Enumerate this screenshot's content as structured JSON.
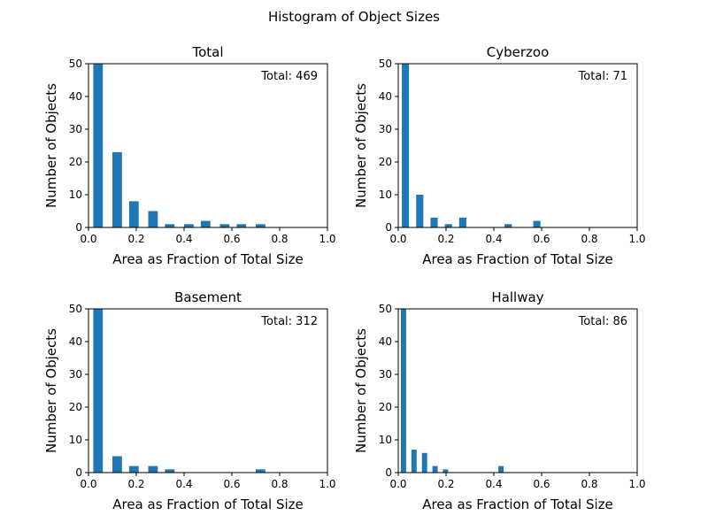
{
  "figure": {
    "suptitle": "Histogram of Object Sizes"
  },
  "chart_data": [
    {
      "type": "bar",
      "title": "Total",
      "xlabel": "Area as Fraction of Total Size",
      "ylabel": "Number of Objects",
      "annotation": "Total: 469",
      "xlim": [
        0,
        1.0
      ],
      "ylim": [
        0,
        50
      ],
      "xticks": [
        "0.0",
        "0.2",
        "0.4",
        "0.6",
        "0.8",
        "1.0"
      ],
      "yticks": [
        "0",
        "10",
        "20",
        "30",
        "40",
        "50"
      ],
      "bar_width": 0.04,
      "bars": [
        {
          "x": 0.04,
          "value": 50
        },
        {
          "x": 0.12,
          "value": 23
        },
        {
          "x": 0.19,
          "value": 8
        },
        {
          "x": 0.27,
          "value": 5
        },
        {
          "x": 0.34,
          "value": 1
        },
        {
          "x": 0.42,
          "value": 1
        },
        {
          "x": 0.49,
          "value": 2
        },
        {
          "x": 0.57,
          "value": 1
        },
        {
          "x": 0.64,
          "value": 1
        },
        {
          "x": 0.72,
          "value": 1
        }
      ],
      "color": "#1f77b4"
    },
    {
      "type": "bar",
      "title": "Cyberzoo",
      "xlabel": "Area as Fraction of Total Size",
      "ylabel": "Number of Objects",
      "annotation": "Total: 71",
      "xlim": [
        0,
        1.0
      ],
      "ylim": [
        0,
        50
      ],
      "xticks": [
        "0.0",
        "0.2",
        "0.4",
        "0.6",
        "0.8",
        "1.0"
      ],
      "yticks": [
        "0",
        "10",
        "20",
        "30",
        "40",
        "50"
      ],
      "bar_width": 0.03,
      "bars": [
        {
          "x": 0.03,
          "value": 50
        },
        {
          "x": 0.09,
          "value": 10
        },
        {
          "x": 0.15,
          "value": 3
        },
        {
          "x": 0.21,
          "value": 1
        },
        {
          "x": 0.27,
          "value": 3
        },
        {
          "x": 0.46,
          "value": 1
        },
        {
          "x": 0.58,
          "value": 2
        }
      ],
      "color": "#1f77b4"
    },
    {
      "type": "bar",
      "title": "Basement",
      "xlabel": "Area as Fraction of Total Size",
      "ylabel": "Number of Objects",
      "annotation": "Total: 312",
      "xlim": [
        0,
        1.0
      ],
      "ylim": [
        0,
        50
      ],
      "xticks": [
        "0.0",
        "0.2",
        "0.4",
        "0.6",
        "0.8",
        "1.0"
      ],
      "yticks": [
        "0",
        "10",
        "20",
        "30",
        "40",
        "50"
      ],
      "bar_width": 0.04,
      "bars": [
        {
          "x": 0.04,
          "value": 50
        },
        {
          "x": 0.12,
          "value": 5
        },
        {
          "x": 0.19,
          "value": 2
        },
        {
          "x": 0.27,
          "value": 2
        },
        {
          "x": 0.34,
          "value": 1
        },
        {
          "x": 0.72,
          "value": 1
        }
      ],
      "color": "#1f77b4"
    },
    {
      "type": "bar",
      "title": "Hallway",
      "xlabel": "Area as Fraction of Total Size",
      "ylabel": "Number of Objects",
      "annotation": "Total: 86",
      "xlim": [
        0,
        1.0
      ],
      "ylim": [
        0,
        50
      ],
      "xticks": [
        "0.0",
        "0.2",
        "0.4",
        "0.6",
        "0.8",
        "1.0"
      ],
      "yticks": [
        "0",
        "10",
        "20",
        "30",
        "40",
        "50"
      ],
      "bar_width": 0.022,
      "bars": [
        {
          "x": 0.022,
          "value": 50
        },
        {
          "x": 0.066,
          "value": 7
        },
        {
          "x": 0.11,
          "value": 6
        },
        {
          "x": 0.154,
          "value": 2
        },
        {
          "x": 0.198,
          "value": 1
        },
        {
          "x": 0.43,
          "value": 2
        }
      ],
      "color": "#1f77b4"
    }
  ]
}
